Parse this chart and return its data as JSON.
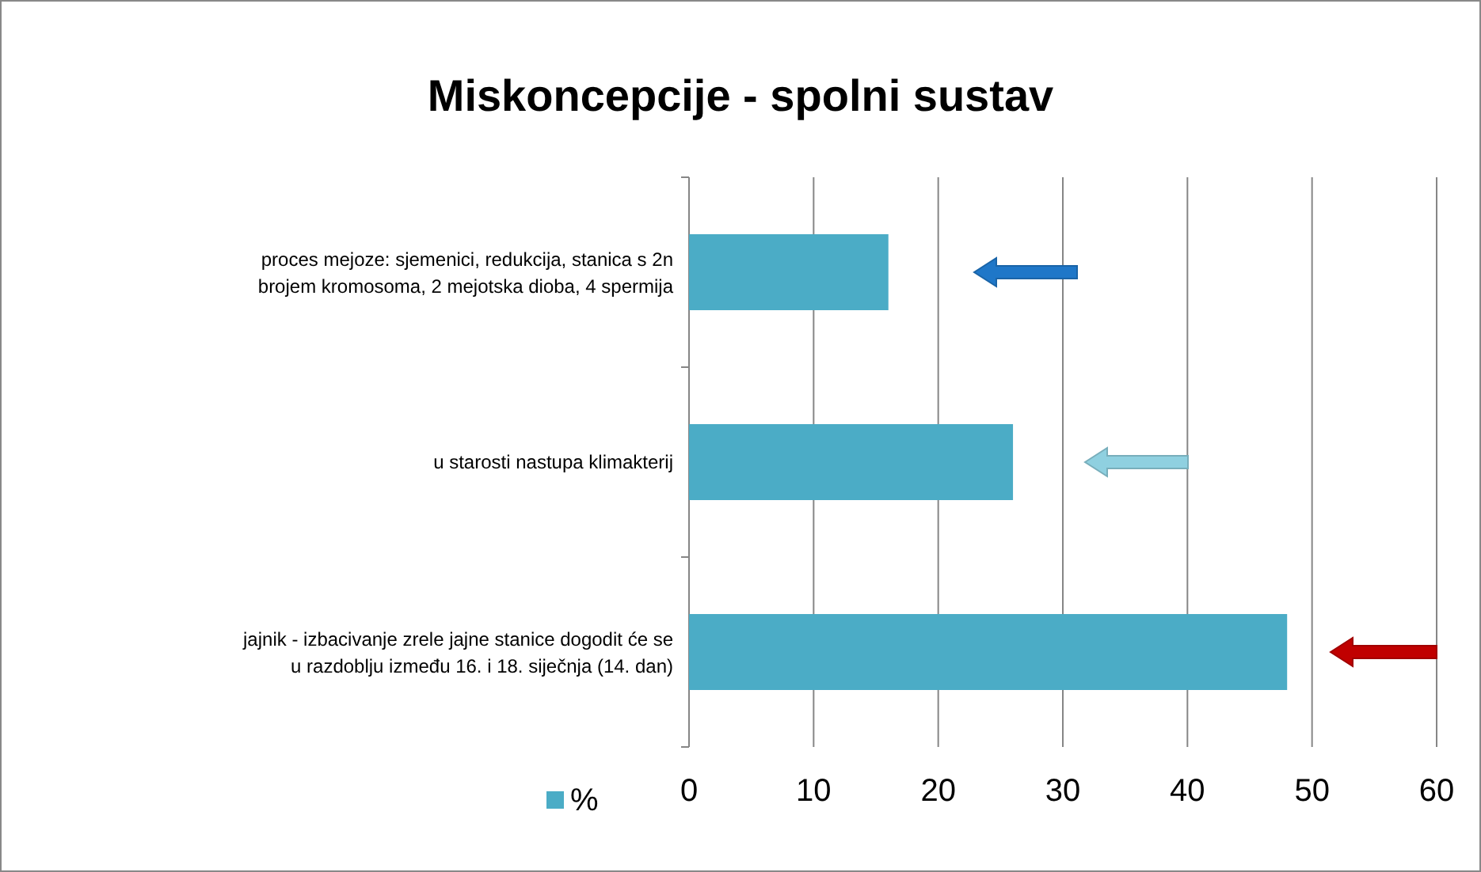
{
  "chart_data": {
    "type": "bar",
    "orientation": "horizontal",
    "title": "Miskoncepcije - spolni sustav",
    "categories": [
      "proces mejoze: sjemenici, redukcija, stanica s 2n brojem kromosoma, 2 mejotska dioba, 4 spermija",
      "u starosti nastupa klimakterij",
      "jajnik - izbacivanje zrele jajne stanice dogodit će se u razdoblju između 16. i 18. siječnja (14. dan)"
    ],
    "series": [
      {
        "name": "%",
        "color": "#4bacc6",
        "values": [
          16,
          26,
          48
        ]
      }
    ],
    "xlim": [
      0,
      60
    ],
    "xticks": [
      0,
      10,
      20,
      30,
      40,
      50,
      60
    ],
    "grid": "x",
    "legend": "bottom"
  }
}
